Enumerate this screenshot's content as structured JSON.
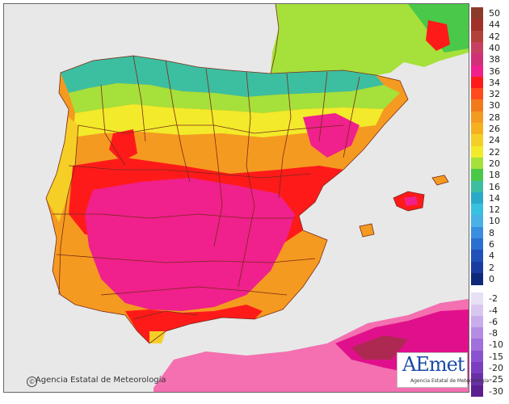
{
  "attribution": {
    "symbol": "©",
    "text": "Agencia Estatal de Meteorología"
  },
  "logo": {
    "word": "AEmet",
    "subtitle": "Agencia Estatal de Meteorología"
  },
  "colors": {
    "sea": "#e8e8e8",
    "border_lines": "#7a2a1a",
    "teal": "#3cbfa0",
    "green": "#49c84a",
    "lime": "#a6e03a",
    "yellow": "#f2ea2a",
    "yellow_orange": "#f5cf26",
    "orange": "#f59a20",
    "dark_orange": "#f27a1c",
    "red": "#ff1a1a",
    "pink": "#f0208c",
    "magenta": "#e0108c",
    "light_pink_africa": "#f470b0",
    "brown_peak": "#8c3a2a"
  },
  "legend": [
    {
      "label": "50",
      "color": "#8c3a2a"
    },
    {
      "label": "44",
      "color": "#a0302a"
    },
    {
      "label": "42",
      "color": "#b4403a"
    },
    {
      "label": "40",
      "color": "#c84060"
    },
    {
      "label": "38",
      "color": "#d03078"
    },
    {
      "label": "36",
      "color": "#f0208c"
    },
    {
      "label": "34",
      "color": "#ff1a1a"
    },
    {
      "label": "32",
      "color": "#ff4a1a"
    },
    {
      "label": "30",
      "color": "#f27a1c"
    },
    {
      "label": "28",
      "color": "#f59a20"
    },
    {
      "label": "26",
      "color": "#f5b020"
    },
    {
      "label": "24",
      "color": "#f5cf26"
    },
    {
      "label": "22",
      "color": "#f2ea2a"
    },
    {
      "label": "20",
      "color": "#a6e03a"
    },
    {
      "label": "18",
      "color": "#49c84a"
    },
    {
      "label": "16",
      "color": "#3cbfa0"
    },
    {
      "label": "14",
      "color": "#2aaac8"
    },
    {
      "label": "12",
      "color": "#38c0e0"
    },
    {
      "label": "10",
      "color": "#4ab0e8"
    },
    {
      "label": "8",
      "color": "#3a8ee0"
    },
    {
      "label": "6",
      "color": "#2a6ed0"
    },
    {
      "label": "4",
      "color": "#2050b8"
    },
    {
      "label": "2",
      "color": "#1a3ca0"
    },
    {
      "label": "0",
      "color": "#102878"
    },
    {
      "label": "-2",
      "color": "#e8e0f4"
    },
    {
      "label": "-4",
      "color": "#d8c8f0"
    },
    {
      "label": "-6",
      "color": "#c8acec"
    },
    {
      "label": "-8",
      "color": "#b48ce4"
    },
    {
      "label": "-10",
      "color": "#a070dc"
    },
    {
      "label": "-15",
      "color": "#8a52d0"
    },
    {
      "label": "-20",
      "color": "#7a3ec0"
    },
    {
      "label": "-25",
      "color": "#6a30a8"
    },
    {
      "label": "-30",
      "color": "#5a2090"
    }
  ]
}
